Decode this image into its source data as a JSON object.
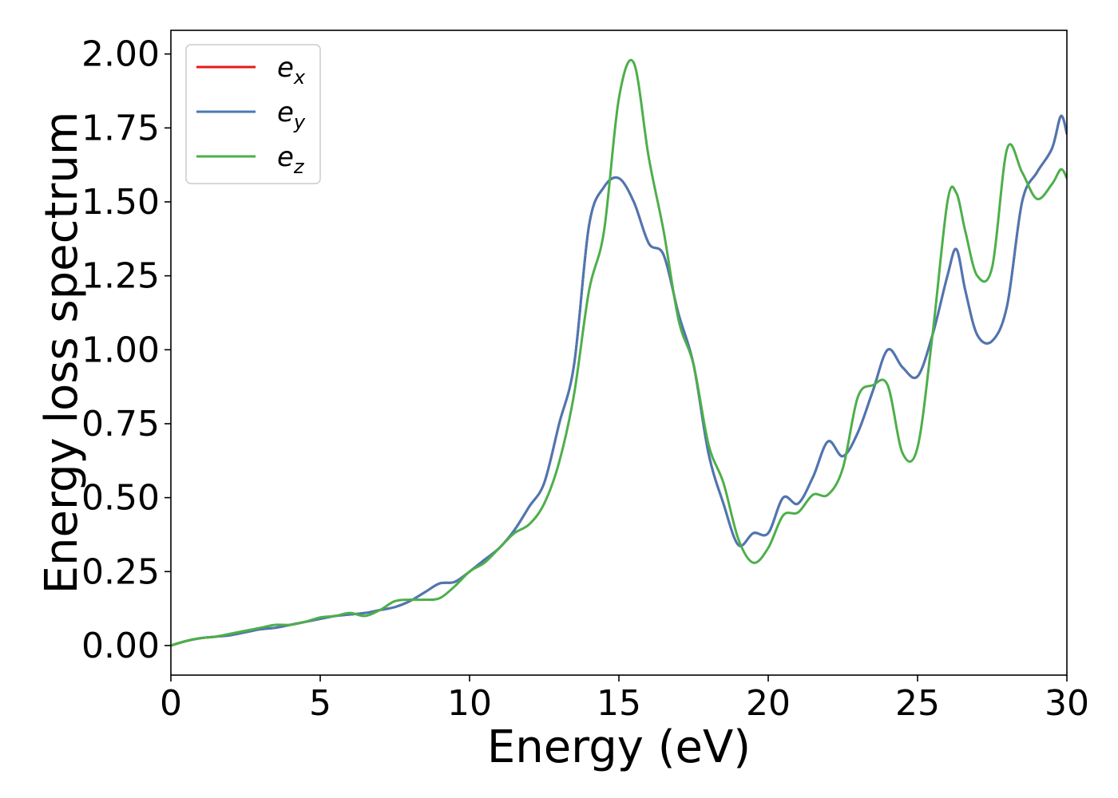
{
  "chart_data": {
    "type": "line",
    "xlabel": "Energy (eV)",
    "ylabel": "Energy loss spectrum",
    "xlim": [
      0,
      30
    ],
    "ylim": [
      -0.1,
      2.08
    ],
    "xticks": [
      0,
      5,
      10,
      15,
      20,
      25,
      30
    ],
    "xtick_labels": [
      "0",
      "5",
      "10",
      "15",
      "20",
      "25",
      "30"
    ],
    "yticks": [
      0,
      0.25,
      0.5,
      0.75,
      1.0,
      1.25,
      1.5,
      1.75,
      2.0
    ],
    "ytick_labels": [
      "0.00",
      "0.25",
      "0.50",
      "0.75",
      "1.00",
      "1.25",
      "1.50",
      "1.75",
      "2.00"
    ],
    "grid": false,
    "legend_position": "top-left",
    "series": [
      {
        "name": "e_x",
        "legend_base": "e",
        "legend_sub": "x",
        "color": "#e41a1c",
        "x": [
          0,
          0.5,
          1,
          1.5,
          2,
          2.5,
          3,
          3.5,
          4,
          4.5,
          5,
          5.5,
          6,
          6.5,
          7,
          7.5,
          8,
          8.5,
          9,
          9.5,
          10,
          10.5,
          11,
          11.5,
          12,
          12.5,
          13,
          13.5,
          14,
          14.5,
          15,
          15.5,
          16,
          16.5,
          17,
          17.5,
          18,
          18.5,
          19,
          19.5,
          20,
          20.5,
          21,
          21.5,
          22,
          22.5,
          23,
          23.5,
          24,
          24.5,
          25,
          25.5,
          26,
          26.3,
          26.6,
          27,
          27.5,
          28,
          28.5,
          29,
          29.5,
          29.8,
          30
        ],
        "y": [
          0,
          0.015,
          0.025,
          0.03,
          0.035,
          0.045,
          0.055,
          0.06,
          0.07,
          0.08,
          0.09,
          0.1,
          0.105,
          0.11,
          0.12,
          0.13,
          0.15,
          0.18,
          0.21,
          0.215,
          0.25,
          0.29,
          0.33,
          0.39,
          0.47,
          0.55,
          0.75,
          0.95,
          1.42,
          1.55,
          1.58,
          1.5,
          1.36,
          1.32,
          1.12,
          0.95,
          0.65,
          0.48,
          0.34,
          0.38,
          0.38,
          0.5,
          0.48,
          0.57,
          0.69,
          0.64,
          0.72,
          0.86,
          1.0,
          0.94,
          0.91,
          1.05,
          1.25,
          1.34,
          1.2,
          1.05,
          1.03,
          1.15,
          1.5,
          1.6,
          1.68,
          1.79,
          1.73
        ]
      },
      {
        "name": "e_y",
        "legend_base": "e",
        "legend_sub": "y",
        "color": "#4a78b4",
        "x": [
          0,
          0.5,
          1,
          1.5,
          2,
          2.5,
          3,
          3.5,
          4,
          4.5,
          5,
          5.5,
          6,
          6.5,
          7,
          7.5,
          8,
          8.5,
          9,
          9.5,
          10,
          10.5,
          11,
          11.5,
          12,
          12.5,
          13,
          13.5,
          14,
          14.5,
          15,
          15.5,
          16,
          16.5,
          17,
          17.5,
          18,
          18.5,
          19,
          19.5,
          20,
          20.5,
          21,
          21.5,
          22,
          22.5,
          23,
          23.5,
          24,
          24.5,
          25,
          25.5,
          26,
          26.3,
          26.6,
          27,
          27.5,
          28,
          28.5,
          29,
          29.5,
          29.8,
          30
        ],
        "y": [
          0,
          0.015,
          0.025,
          0.03,
          0.035,
          0.045,
          0.055,
          0.06,
          0.07,
          0.08,
          0.09,
          0.1,
          0.105,
          0.11,
          0.12,
          0.13,
          0.15,
          0.18,
          0.21,
          0.215,
          0.25,
          0.29,
          0.33,
          0.39,
          0.47,
          0.55,
          0.75,
          0.95,
          1.42,
          1.55,
          1.58,
          1.5,
          1.36,
          1.32,
          1.12,
          0.95,
          0.65,
          0.48,
          0.34,
          0.38,
          0.38,
          0.5,
          0.48,
          0.57,
          0.69,
          0.64,
          0.72,
          0.86,
          1.0,
          0.94,
          0.91,
          1.05,
          1.25,
          1.34,
          1.2,
          1.05,
          1.03,
          1.15,
          1.5,
          1.6,
          1.68,
          1.79,
          1.73
        ]
      },
      {
        "name": "e_z",
        "legend_base": "e",
        "legend_sub": "z",
        "color": "#4daf4a",
        "x": [
          0,
          0.5,
          1,
          1.5,
          2,
          2.5,
          3,
          3.5,
          4,
          4.5,
          5,
          5.5,
          6,
          6.5,
          7,
          7.5,
          8,
          8.5,
          9,
          9.5,
          10,
          10.5,
          11,
          11.5,
          12,
          12.5,
          13,
          13.5,
          14,
          14.5,
          15,
          15.5,
          16,
          16.5,
          17,
          17.5,
          18,
          18.5,
          19,
          19.5,
          20,
          20.5,
          21,
          21.5,
          22,
          22.5,
          23,
          23.5,
          24,
          24.5,
          25,
          25.5,
          26,
          26.3,
          26.6,
          27,
          27.5,
          28,
          28.5,
          29,
          29.5,
          29.8,
          30
        ],
        "y": [
          0,
          0.015,
          0.025,
          0.03,
          0.04,
          0.05,
          0.06,
          0.07,
          0.07,
          0.08,
          0.095,
          0.1,
          0.11,
          0.1,
          0.12,
          0.15,
          0.155,
          0.155,
          0.16,
          0.2,
          0.25,
          0.28,
          0.33,
          0.38,
          0.41,
          0.48,
          0.62,
          0.85,
          1.2,
          1.4,
          1.85,
          1.97,
          1.65,
          1.4,
          1.1,
          0.95,
          0.68,
          0.55,
          0.36,
          0.28,
          0.33,
          0.44,
          0.45,
          0.51,
          0.51,
          0.6,
          0.84,
          0.88,
          0.88,
          0.65,
          0.67,
          1.05,
          1.5,
          1.53,
          1.4,
          1.25,
          1.28,
          1.68,
          1.6,
          1.51,
          1.56,
          1.61,
          1.58
        ]
      }
    ]
  }
}
